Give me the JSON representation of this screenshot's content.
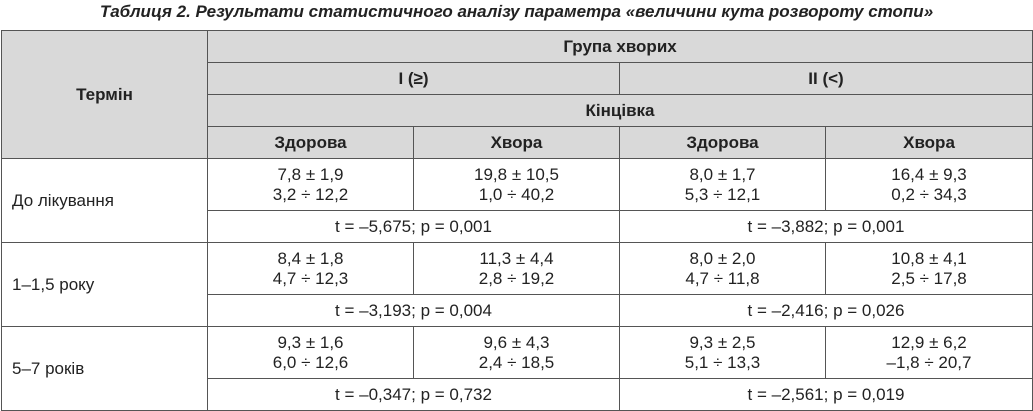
{
  "title": "Таблиця 2. Результати статистичного аналізу параметра «величини кута розвороту стопи»",
  "header": {
    "term": "Термін",
    "group": "Група хворих",
    "group_1": "I (≥)",
    "group_2": "II (<)",
    "limb": "Кінцівка",
    "columns": [
      "Здорова",
      "Хвора",
      "Здорова",
      "Хвора"
    ]
  },
  "rows": [
    {
      "term": "До лікування",
      "cells": [
        [
          "7,8 ± 1,9",
          "3,2 ÷ 12,2"
        ],
        [
          "19,8 ± 10,5",
          "1,0 ÷ 40,2"
        ],
        [
          "8,0 ± 1,7",
          "5,3 ÷ 12,1"
        ],
        [
          "16,4 ± 9,3",
          "0,2 ÷ 34,3"
        ]
      ],
      "stats": [
        "t = –5,675; p = 0,001",
        "t = –3,882; p = 0,001"
      ]
    },
    {
      "term": "1–1,5 року",
      "cells": [
        [
          "8,4 ± 1,8",
          "4,7 ÷ 12,3"
        ],
        [
          "11,3 ± 4,4",
          "2,8 ÷ 19,2"
        ],
        [
          "8,0 ± 2,0",
          "4,7 ÷ 11,8"
        ],
        [
          "10,8 ± 4,1",
          "2,5 ÷ 17,8"
        ]
      ],
      "stats": [
        "t = –3,193; p = 0,004",
        "t = –2,416; p = 0,026"
      ]
    },
    {
      "term": "5–7 років",
      "cells": [
        [
          "9,3 ± 1,6",
          "6,0 ÷ 12,6"
        ],
        [
          "9,6 ± 4,3",
          "2,4 ÷ 18,5"
        ],
        [
          "9,3 ± 2,5",
          "5,1 ÷ 13,3"
        ],
        [
          "12,9 ± 6,2",
          "–1,8 ÷ 20,7"
        ]
      ],
      "stats": [
        "t = –0,347; p = 0,732",
        "t = –2,561; p = 0,019"
      ]
    }
  ]
}
